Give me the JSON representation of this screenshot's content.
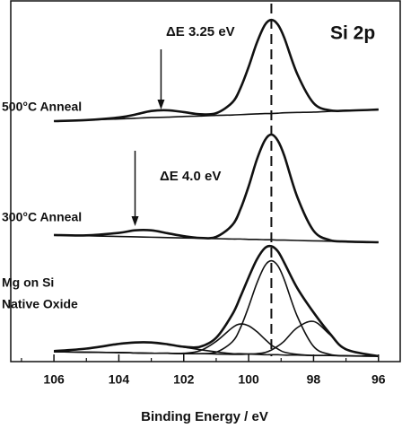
{
  "chart_data": {
    "type": "line",
    "title": "Si 2p",
    "xlabel": "Binding Energy / eV",
    "annotations": [
      "ΔE 3.25 eV",
      "ΔE 4.0 eV"
    ],
    "spectrum_labels": [
      "500°C Anneal",
      "300°C Anneal",
      "Mg on Si",
      "Native Oxide"
    ],
    "xlim": [
      107.33,
      95.33
    ],
    "ylim": [
      0,
      100
    ],
    "xticks": [
      106,
      104,
      102,
      100,
      98,
      96
    ],
    "xminorticks": [
      107,
      105,
      103,
      101,
      99,
      97
    ],
    "reference_line_x": 99.3,
    "arrows_x": [
      102.7,
      103.5
    ],
    "x": [
      106,
      105,
      104,
      103.5,
      103,
      102.5,
      102,
      101.5,
      101,
      100.5,
      100.25,
      100,
      99.75,
      99.5,
      99.3,
      99.1,
      98.9,
      98.5,
      98,
      97.5,
      97,
      96
    ],
    "series": [
      {
        "color": "#111111",
        "width": 2.6,
        "values": [
          66.5,
          66.8,
          67.5,
          68.3,
          69.3,
          69.5,
          69.0,
          68.4,
          68.7,
          71.7,
          75.7,
          81.5,
          88.1,
          93.1,
          94.5,
          93.2,
          89.5,
          79.5,
          71.5,
          69.5,
          69.4,
          69.7
        ]
      },
      {
        "color": "#111111",
        "width": 1.6,
        "values": [
          66.5,
          66.8,
          67.1,
          67.3,
          67.5,
          67.6,
          67.8,
          67.9,
          68.1,
          68.2,
          68.3,
          68.4,
          68.5,
          68.6,
          68.6,
          68.7,
          68.8,
          68.9,
          69.0,
          69.2,
          69.4,
          69.7
        ]
      },
      {
        "color": "#111111",
        "width": 2.6,
        "values": [
          35.0,
          34.9,
          35.6,
          36.3,
          36.3,
          35.5,
          34.7,
          34.2,
          34.5,
          37.8,
          42.2,
          48.5,
          55.8,
          61.2,
          62.8,
          61.1,
          56.9,
          45.5,
          36.2,
          33.6,
          33.2,
          33.0
        ]
      },
      {
        "color": "#111111",
        "width": 1.6,
        "values": [
          35.0,
          34.8,
          34.6,
          34.5,
          34.4,
          34.3,
          34.2,
          34.1,
          34.0,
          33.9,
          33.9,
          33.8,
          33.8,
          33.7,
          33.7,
          33.6,
          33.6,
          33.5,
          33.4,
          33.3,
          33.2,
          33.0
        ]
      },
      {
        "color": "#111111",
        "width": 2.6,
        "values": [
          2.9,
          3.6,
          4.9,
          5.3,
          5.3,
          4.8,
          4.1,
          4.1,
          6.6,
          13.1,
          18.0,
          23.3,
          28.2,
          31.4,
          31.9,
          30.5,
          27.3,
          20.3,
          13.6,
          7.8,
          3.4,
          1.5
        ]
      },
      {
        "color": "#111111",
        "width": 1.6,
        "values": [
          2.7,
          2.6,
          2.5,
          2.4,
          2.3,
          2.3,
          2.2,
          2.2,
          2.6,
          5.5,
          9.4,
          15.2,
          21.6,
          26.5,
          27.9,
          26.5,
          22.6,
          12.5,
          4.2,
          2.0,
          1.6,
          1.5
        ]
      },
      {
        "color": "#111111",
        "width": 1.6,
        "values": [
          2.7,
          2.6,
          2.5,
          2.4,
          2.3,
          2.3,
          2.3,
          3.0,
          5.6,
          9.4,
          10.4,
          9.9,
          8.3,
          6.2,
          4.6,
          3.5,
          2.6,
          2.0,
          1.7,
          1.7,
          1.6,
          1.5
        ]
      },
      {
        "color": "#111111",
        "width": 1.6,
        "values": [
          2.7,
          2.6,
          2.5,
          2.4,
          2.3,
          2.3,
          2.2,
          2.2,
          2.1,
          2.0,
          2.0,
          2.1,
          2.2,
          2.5,
          3.2,
          4.3,
          5.7,
          9.4,
          11.1,
          7.5,
          3.4,
          1.5
        ]
      },
      {
        "color": "#111111",
        "width": 1.6,
        "values": [
          2.9,
          3.6,
          4.9,
          5.3,
          5.3,
          4.8,
          4.0,
          3.3,
          2.7,
          2.2,
          2.2,
          2.1,
          2.0,
          1.9,
          1.9,
          1.9,
          1.8,
          1.8,
          1.7,
          1.7,
          1.6,
          1.5
        ]
      }
    ]
  }
}
